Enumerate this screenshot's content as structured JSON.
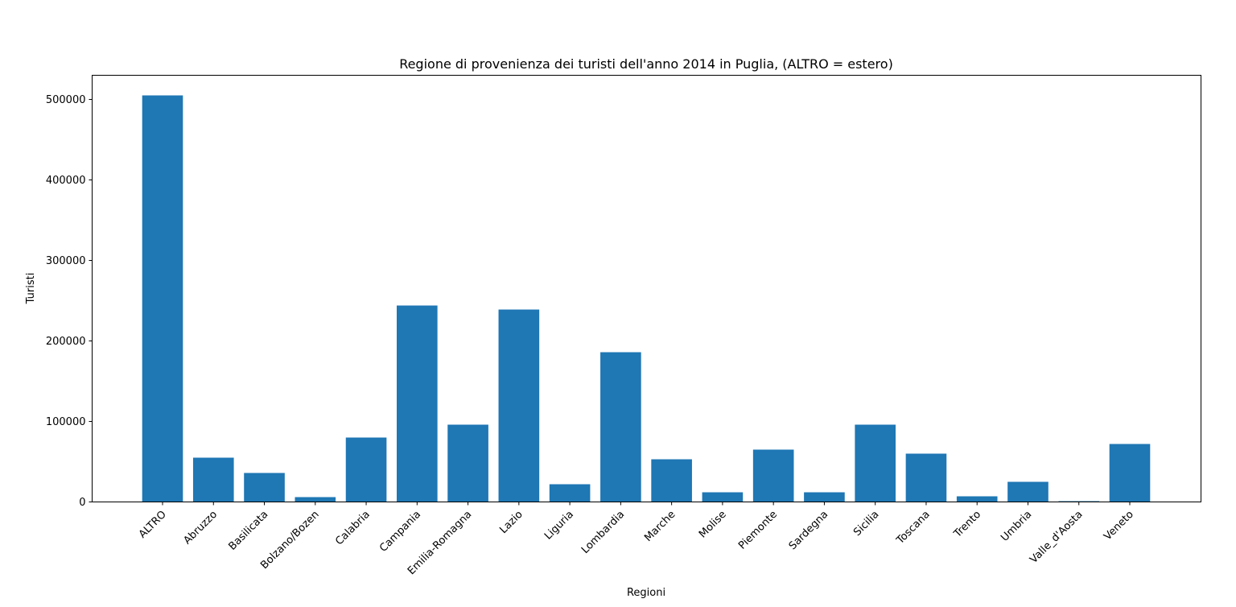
{
  "chart_data": {
    "type": "bar",
    "title": "Regione di provenienza dei turisti dell'anno 2014 in Puglia, (ALTRO = estero)",
    "xlabel": "Regioni",
    "ylabel": "Turisti",
    "categories": [
      "ALTRO",
      "Abruzzo",
      "Basilicata",
      "Bolzano/Bozen",
      "Calabria",
      "Campania",
      "Emilia-Romagna",
      "Lazio",
      "Liguria",
      "Lombardia",
      "Marche",
      "Molise",
      "Piemonte",
      "Sardegna",
      "Sicilia",
      "Toscana",
      "Trento",
      "Umbria",
      "Valle_d'Aosta",
      "Veneto"
    ],
    "values": [
      505000,
      55000,
      36000,
      6000,
      80000,
      244000,
      96000,
      239000,
      22000,
      186000,
      53000,
      12000,
      65000,
      12000,
      96000,
      60000,
      7000,
      25000,
      1000,
      72000
    ],
    "ylim": [
      0,
      530000
    ],
    "yticks": [
      0,
      100000,
      200000,
      300000,
      400000,
      500000
    ],
    "bar_color": "#1f77b4",
    "grid": false,
    "legend": "none"
  }
}
